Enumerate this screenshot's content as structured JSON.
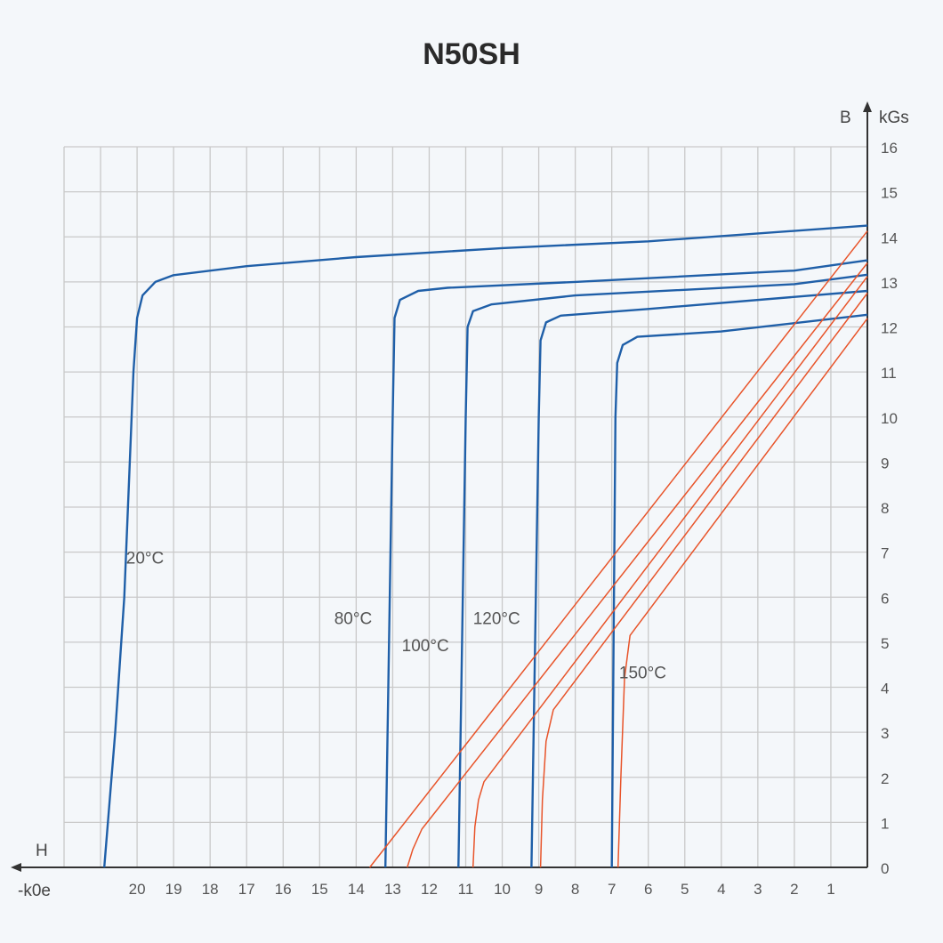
{
  "title": "N50SH",
  "chart_data": {
    "type": "line",
    "title": "N50SH",
    "xlabel": "H",
    "xunit": "-k0e",
    "ylabel": "B",
    "yunit": "kGs",
    "xlim": [
      22,
      0
    ],
    "ylim": [
      0,
      16
    ],
    "grid": true,
    "x_ticks": [
      20,
      19,
      18,
      17,
      16,
      15,
      14,
      13,
      12,
      11,
      10,
      9,
      8,
      7,
      6,
      5,
      4,
      3,
      2,
      1
    ],
    "y_ticks": [
      0,
      1,
      2,
      3,
      4,
      5,
      6,
      7,
      8,
      9,
      10,
      11,
      12,
      13,
      14,
      15,
      16
    ],
    "colors": {
      "intrinsic": "#1f5fa8",
      "normal": "#e8542a"
    },
    "series": [
      {
        "name": "20°C intrinsic",
        "kind": "intrinsic",
        "points": [
          [
            20.9,
            0
          ],
          [
            20.6,
            3
          ],
          [
            20.35,
            6
          ],
          [
            20.2,
            9
          ],
          [
            20.1,
            11
          ],
          [
            20.0,
            12.2
          ],
          [
            19.85,
            12.7
          ],
          [
            19.5,
            13.0
          ],
          [
            19,
            13.15
          ],
          [
            17,
            13.35
          ],
          [
            14,
            13.55
          ],
          [
            10,
            13.75
          ],
          [
            6,
            13.9
          ],
          [
            0,
            14.25
          ]
        ]
      },
      {
        "name": "80°C intrinsic",
        "kind": "intrinsic",
        "points": [
          [
            13.2,
            0
          ],
          [
            13.1,
            5
          ],
          [
            13.0,
            10
          ],
          [
            12.95,
            12.2
          ],
          [
            12.8,
            12.6
          ],
          [
            12.3,
            12.8
          ],
          [
            11.5,
            12.87
          ],
          [
            8,
            13.0
          ],
          [
            2,
            13.25
          ],
          [
            0,
            13.48
          ]
        ]
      },
      {
        "name": "100°C intrinsic",
        "kind": "intrinsic",
        "points": [
          [
            11.2,
            0
          ],
          [
            11.1,
            5
          ],
          [
            11.0,
            10
          ],
          [
            10.95,
            12.0
          ],
          [
            10.8,
            12.35
          ],
          [
            10.3,
            12.5
          ],
          [
            8,
            12.7
          ],
          [
            2,
            12.95
          ],
          [
            0,
            13.16
          ]
        ]
      },
      {
        "name": "120°C intrinsic",
        "kind": "intrinsic",
        "points": [
          [
            9.2,
            0
          ],
          [
            9.1,
            5
          ],
          [
            9.0,
            10
          ],
          [
            8.95,
            11.7
          ],
          [
            8.8,
            12.1
          ],
          [
            8.4,
            12.25
          ],
          [
            6,
            12.4
          ],
          [
            0,
            12.8
          ]
        ]
      },
      {
        "name": "150°C intrinsic",
        "kind": "intrinsic",
        "points": [
          [
            7.0,
            0
          ],
          [
            6.95,
            5
          ],
          [
            6.9,
            10
          ],
          [
            6.85,
            11.2
          ],
          [
            6.7,
            11.6
          ],
          [
            6.3,
            11.78
          ],
          [
            4,
            11.9
          ],
          [
            0,
            12.27
          ]
        ]
      },
      {
        "name": "20°C normal",
        "kind": "normal",
        "points": [
          [
            13.63,
            0
          ],
          [
            0,
            14.13
          ]
        ]
      },
      {
        "name": "80°C normal",
        "kind": "normal",
        "points": [
          [
            12.6,
            0
          ],
          [
            12.45,
            0.4
          ],
          [
            12.2,
            0.85
          ],
          [
            0,
            13.42
          ]
        ]
      },
      {
        "name": "100°C normal",
        "kind": "normal",
        "points": [
          [
            10.8,
            0
          ],
          [
            10.75,
            0.9
          ],
          [
            10.65,
            1.5
          ],
          [
            10.5,
            1.9
          ],
          [
            0,
            13.12
          ]
        ]
      },
      {
        "name": "120°C normal",
        "kind": "normal",
        "points": [
          [
            8.95,
            0
          ],
          [
            8.9,
            1.5
          ],
          [
            8.8,
            2.8
          ],
          [
            8.6,
            3.5
          ],
          [
            0,
            12.75
          ]
        ]
      },
      {
        "name": "150°C normal",
        "kind": "normal",
        "points": [
          [
            6.83,
            0
          ],
          [
            6.75,
            2
          ],
          [
            6.65,
            4.2
          ],
          [
            6.5,
            5.15
          ],
          [
            0,
            12.19
          ]
        ]
      }
    ],
    "annotations": [
      {
        "text": "20°C",
        "at": [
          20.3,
          6.75
        ]
      },
      {
        "text": "80°C",
        "at": [
          14.6,
          5.4
        ]
      },
      {
        "text": "100°C",
        "at": [
          12.75,
          4.8
        ]
      },
      {
        "text": "120°C",
        "at": [
          10.8,
          5.4
        ]
      },
      {
        "text": "150°C",
        "at": [
          6.8,
          4.2
        ]
      }
    ]
  }
}
